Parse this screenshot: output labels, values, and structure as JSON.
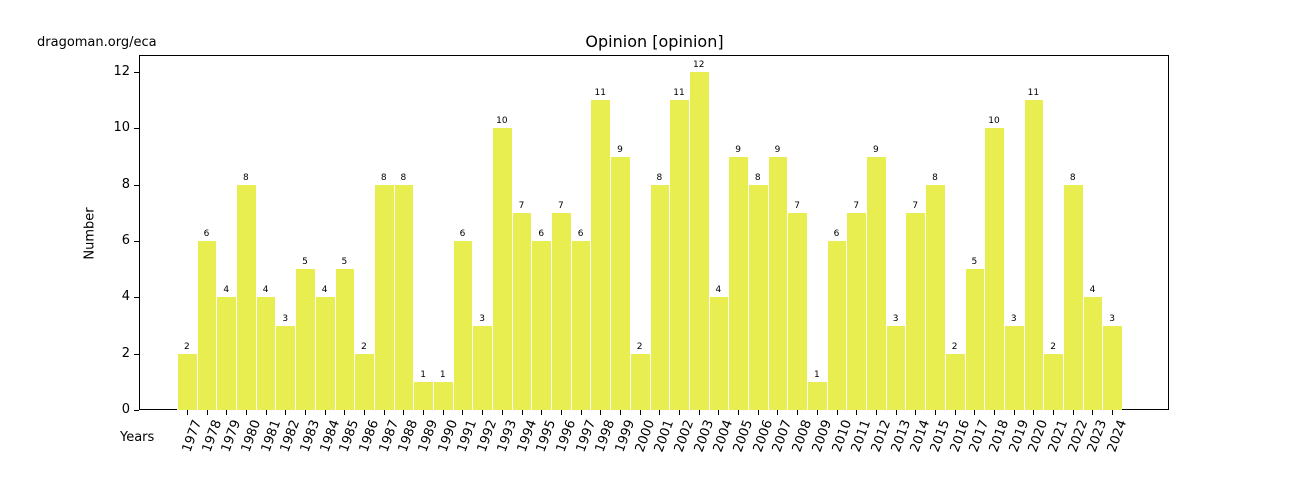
{
  "watermark": "dragoman.org/eca",
  "chart_data": {
    "type": "bar",
    "title": "Opinion [opinion]",
    "xlabel": "Years",
    "ylabel": "Number",
    "ylim": [
      0,
      12.6
    ],
    "yticks": [
      0,
      2,
      4,
      6,
      8,
      10,
      12
    ],
    "grid": false,
    "bar_color": "#e8ed50",
    "categories": [
      "1977",
      "1978",
      "1979",
      "1980",
      "1981",
      "1982",
      "1983",
      "1984",
      "1985",
      "1986",
      "1987",
      "1988",
      "1989",
      "1990",
      "1991",
      "1992",
      "1993",
      "1994",
      "1995",
      "1996",
      "1997",
      "1998",
      "1999",
      "2000",
      "2001",
      "2002",
      "2003",
      "2004",
      "2005",
      "2006",
      "2007",
      "2008",
      "2009",
      "2010",
      "2011",
      "2012",
      "2013",
      "2014",
      "2015",
      "2016",
      "2017",
      "2018",
      "2019",
      "2020",
      "2021",
      "2022",
      "2023",
      "2024"
    ],
    "values": [
      2,
      6,
      4,
      8,
      4,
      3,
      5,
      4,
      5,
      2,
      8,
      8,
      1,
      1,
      6,
      3,
      10,
      7,
      6,
      7,
      6,
      11,
      9,
      2,
      8,
      11,
      12,
      4,
      9,
      8,
      9,
      7,
      1,
      6,
      7,
      9,
      3,
      7,
      8,
      2,
      5,
      10,
      3,
      11,
      2,
      8,
      4,
      3
    ]
  }
}
